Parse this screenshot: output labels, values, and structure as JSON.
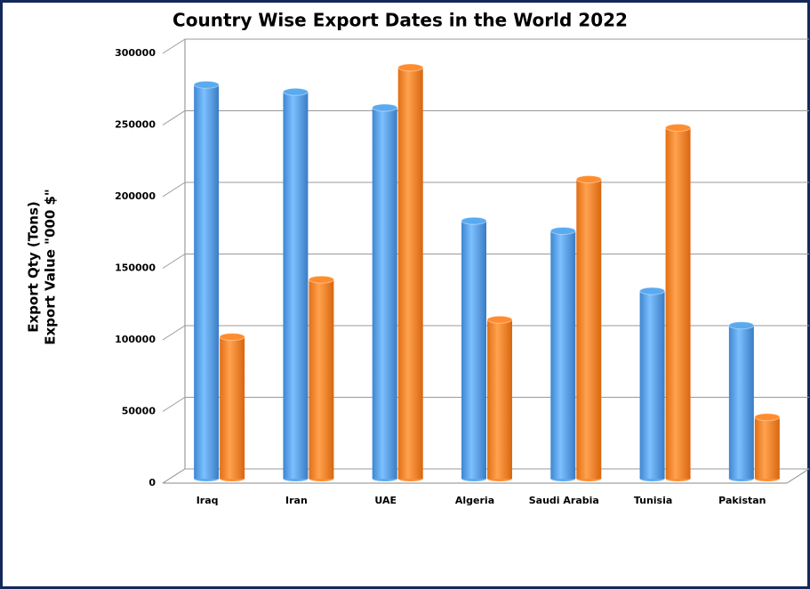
{
  "chart_data": {
    "type": "bar3d",
    "title": "Country Wise Export Dates in the World 2022",
    "ylabel": [
      "Export Qty (Tons)",
      "Export Value \"000 $\""
    ],
    "categories": [
      "Iraq",
      "Iran",
      "UAE",
      "Algeria",
      "Saudi Arabia",
      "Tunisia",
      "Pakistan"
    ],
    "series": [
      {
        "color": "#5aaaf0",
        "values": [
          275000,
          270000,
          259000,
          180000,
          173000,
          131000,
          107000
        ]
      },
      {
        "color": "#ff8c2e",
        "values": [
          99000,
          139000,
          287000,
          111000,
          209000,
          245000,
          43000
        ]
      }
    ],
    "ylim": [
      0,
      300000
    ],
    "yticks": [
      0,
      50000,
      100000,
      150000,
      200000,
      250000,
      300000
    ],
    "grid": true
  }
}
